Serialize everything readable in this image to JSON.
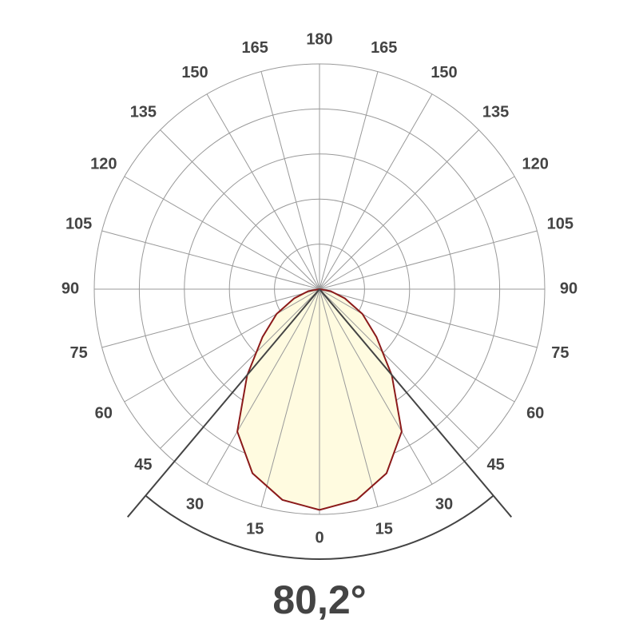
{
  "chart_data": {
    "type": "polar",
    "angle_ticks": [
      0,
      15,
      30,
      45,
      60,
      75,
      90,
      105,
      120,
      135,
      150,
      165,
      180
    ],
    "rlim": [
      0,
      100
    ],
    "rticks": [
      20,
      40,
      60,
      80,
      100
    ],
    "series": [
      {
        "color": "#8b1a1a",
        "fill": "#fffbe0",
        "angles": [
          0,
          10,
          20,
          30,
          40,
          50,
          60,
          70,
          80,
          90
        ],
        "values": [
          98,
          95,
          87,
          73,
          50,
          33,
          22,
          12,
          5,
          0
        ]
      }
    ],
    "beam_angle": {
      "value": 80.2,
      "label": "80,2°"
    }
  }
}
